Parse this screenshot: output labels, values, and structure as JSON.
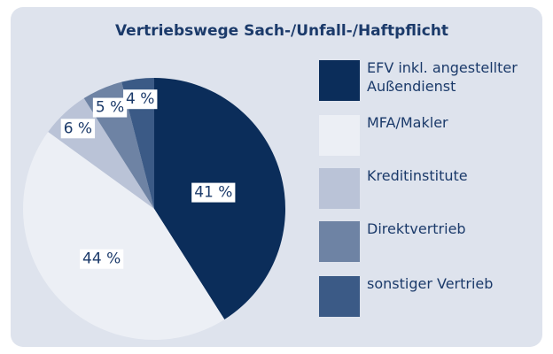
{
  "chart_data": {
    "type": "pie",
    "title": "Vertriebswege Sach-/Unfall-/Haftpflicht",
    "categories": [
      "EFV inkl. angestellter Außendienst",
      "MFA/Makler",
      "Kreditinstitute",
      "Direktvertrieb",
      "sonstiger Vertrieb"
    ],
    "values": [
      41,
      44,
      6,
      5,
      4
    ],
    "value_labels": [
      "41 %",
      "44 %",
      "6 %",
      "5 %",
      "4 %"
    ],
    "colors": [
      "#0b2d5a",
      "#eceff5",
      "#bac3d7",
      "#6e83a4",
      "#3b5a86"
    ]
  }
}
